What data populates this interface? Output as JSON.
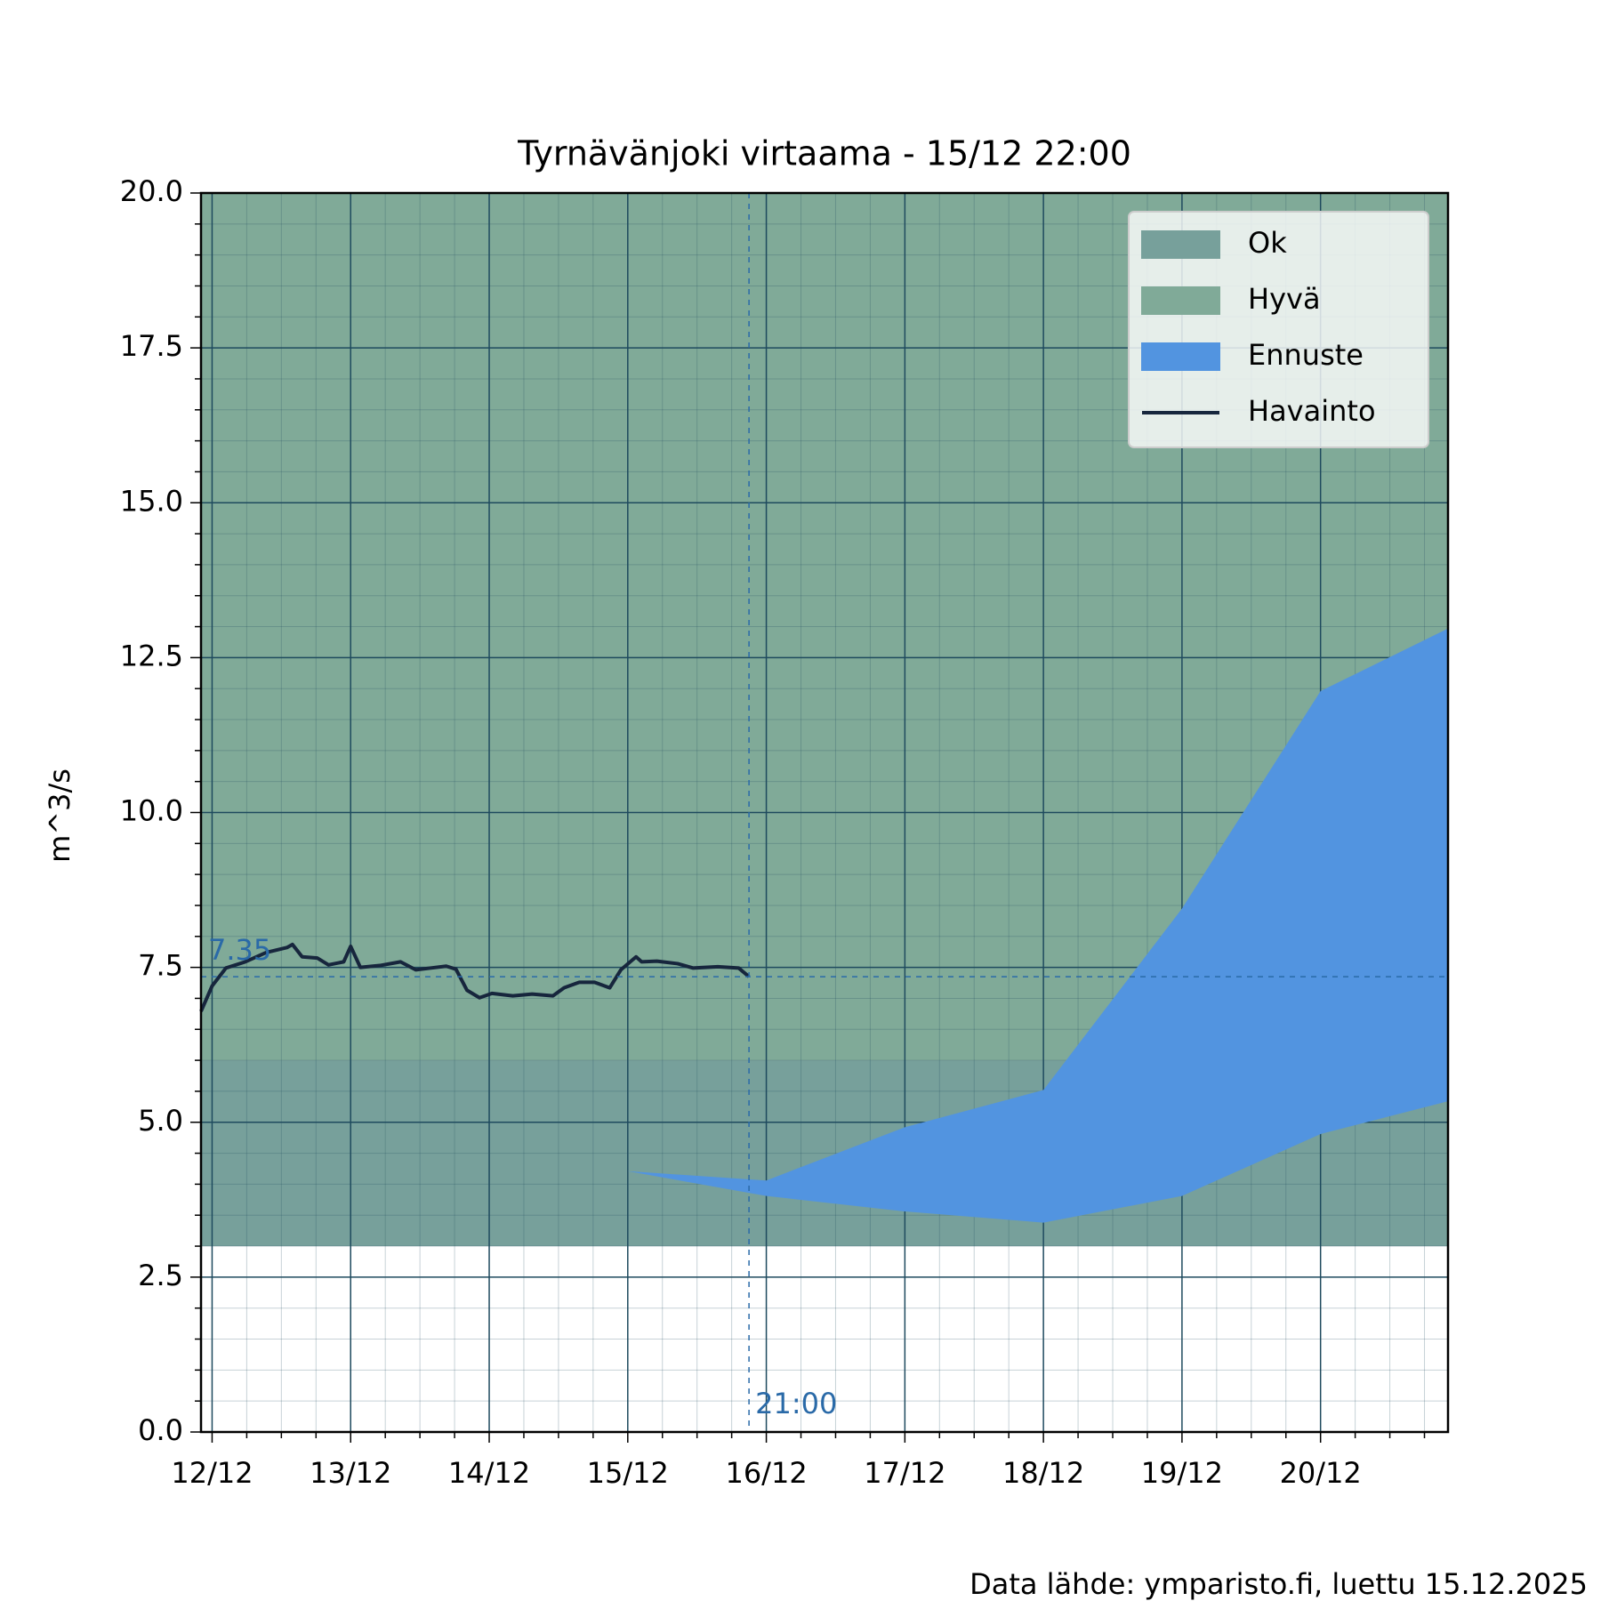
{
  "chart_data": {
    "type": "band-line",
    "title": "Tyrnävänjoki virtaama  -  15/12 22:00",
    "ylabel": "m^3/s",
    "footer": "Data lähde: ymparisto.fi, luettu 15.12.2025",
    "xlim": [
      11.92,
      20.92
    ],
    "xticks": [
      {
        "value": 12,
        "label": "12/12"
      },
      {
        "value": 13,
        "label": "13/12"
      },
      {
        "value": 14,
        "label": "14/12"
      },
      {
        "value": 15,
        "label": "15/12"
      },
      {
        "value": 16,
        "label": "16/12"
      },
      {
        "value": 17,
        "label": "17/12"
      },
      {
        "value": 18,
        "label": "18/12"
      },
      {
        "value": 19,
        "label": "19/12"
      },
      {
        "value": 20,
        "label": "20/12"
      }
    ],
    "ylim": [
      0,
      20
    ],
    "yticks": [
      {
        "value": 0,
        "label": "0.0"
      },
      2.5,
      {
        "value": 5,
        "label": "5.0"
      },
      7.5,
      {
        "value": 10,
        "label": "10.0"
      },
      12.5,
      {
        "value": 15,
        "label": "15.0"
      },
      17.5,
      {
        "value": 20,
        "label": "20.0"
      }
    ],
    "grid": true,
    "minor_grid": true,
    "legend": "upper right",
    "bands": [
      {
        "name": "Ok",
        "color": "#77a09b",
        "range": [
          3,
          6
        ]
      },
      {
        "name": "Hyvä",
        "color": "#80aa98",
        "range": [
          6,
          20
        ]
      }
    ],
    "forecast": {
      "name": "Ennuste",
      "color": "#5294e0",
      "x": [
        15,
        16,
        17,
        18,
        19,
        20,
        20.92
      ],
      "upper": [
        4.21,
        4.06,
        4.92,
        5.52,
        8.45,
        11.96,
        12.97
      ],
      "lower": [
        4.21,
        3.81,
        3.56,
        3.38,
        3.81,
        4.81,
        5.34
      ]
    },
    "observed": {
      "name": "Havainto",
      "color": "#17263d",
      "x": [
        11.92,
        12.0,
        12.1,
        12.24,
        12.39,
        12.54,
        12.58,
        12.65,
        12.76,
        12.84,
        12.95,
        13.0,
        13.07,
        13.21,
        13.36,
        13.47,
        13.58,
        13.69,
        13.76,
        13.84,
        13.93,
        14.02,
        14.17,
        14.31,
        14.46,
        14.54,
        14.65,
        14.76,
        14.87,
        14.95,
        15.06,
        15.1,
        15.21,
        15.36,
        15.47,
        15.65,
        15.8,
        15.875
      ],
      "values": [
        6.79,
        7.2,
        7.49,
        7.59,
        7.74,
        7.82,
        7.87,
        7.67,
        7.65,
        7.54,
        7.59,
        7.84,
        7.5,
        7.53,
        7.59,
        7.46,
        7.49,
        7.52,
        7.47,
        7.13,
        7.01,
        7.08,
        7.04,
        7.07,
        7.04,
        7.17,
        7.26,
        7.26,
        7.17,
        7.46,
        7.67,
        7.59,
        7.6,
        7.56,
        7.49,
        7.51,
        7.49,
        7.35
      ]
    },
    "current_value": 7.35,
    "current_time": {
      "value": 15.875,
      "label": "21:00"
    },
    "marker_color": "#2a6aa8"
  }
}
